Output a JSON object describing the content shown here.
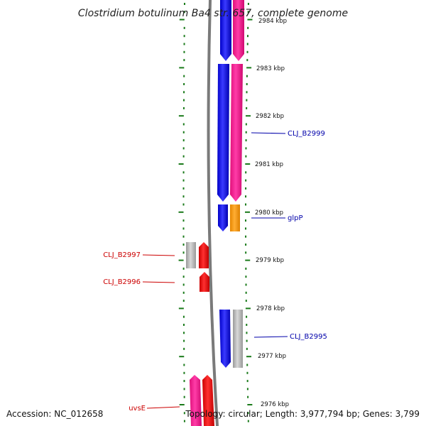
{
  "title": "Clostridium botulinum Ba4 str. 657, complete genome",
  "footer": {
    "accession": "Accession: NC_012658",
    "topology": "Topology: circular; Length: 3,977,794 bp; Genes: 3,799"
  },
  "ticks": [
    "2984 kbp",
    "2983 kbp",
    "2982 kbp",
    "2981 kbp",
    "2980 kbp",
    "2979 kbp",
    "2978 kbp",
    "2977 kbp",
    "2976 kbp"
  ],
  "gene_labels": {
    "clj_b2999": "CLJ_B2999",
    "glpp": "glpP",
    "clj_b2997": "CLJ_B2997",
    "clj_b2996": "CLJ_B2996",
    "clj_b2995": "CLJ_B2995",
    "uvse": "uvsE"
  },
  "colors": {
    "blue": "#1010ee",
    "pink": "#ff2090",
    "orange": "#ff9900",
    "red": "#ee1111",
    "grey": "#b8b8b8",
    "tick_green": "#1a7a1a",
    "forward_label": "#0000aa",
    "reverse_label": "#cc0000"
  }
}
